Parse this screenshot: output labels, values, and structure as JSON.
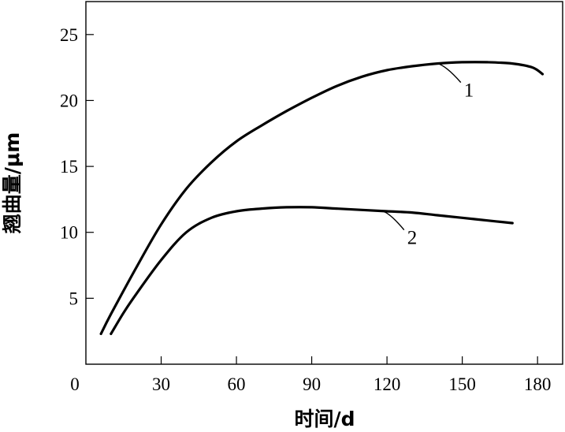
{
  "chart_data": {
    "type": "line",
    "xlabel": "时间/d",
    "ylabel": "翘曲量/μm",
    "xlim": [
      0,
      190
    ],
    "ylim": [
      0,
      27.5
    ],
    "xticks": [
      0,
      30,
      60,
      90,
      120,
      150,
      180
    ],
    "yticks": [
      5,
      10,
      15,
      20,
      25
    ],
    "grid": false,
    "series": [
      {
        "name": "1",
        "x": [
          6,
          10,
          20,
          30,
          40,
          50,
          60,
          70,
          80,
          90,
          100,
          110,
          120,
          130,
          140,
          150,
          160,
          170,
          178,
          182
        ],
        "y": [
          2.3,
          3.8,
          7.3,
          10.6,
          13.3,
          15.3,
          16.9,
          18.1,
          19.2,
          20.2,
          21.1,
          21.8,
          22.3,
          22.6,
          22.8,
          22.9,
          22.9,
          22.8,
          22.5,
          22.0
        ]
      },
      {
        "name": "2",
        "x": [
          10,
          15,
          20,
          30,
          40,
          50,
          60,
          70,
          80,
          90,
          100,
          110,
          120,
          130,
          140,
          150,
          160,
          170
        ],
        "y": [
          2.3,
          3.9,
          5.3,
          7.9,
          10.0,
          11.1,
          11.6,
          11.8,
          11.9,
          11.9,
          11.8,
          11.7,
          11.6,
          11.5,
          11.3,
          11.1,
          10.9,
          10.7
        ]
      }
    ]
  }
}
